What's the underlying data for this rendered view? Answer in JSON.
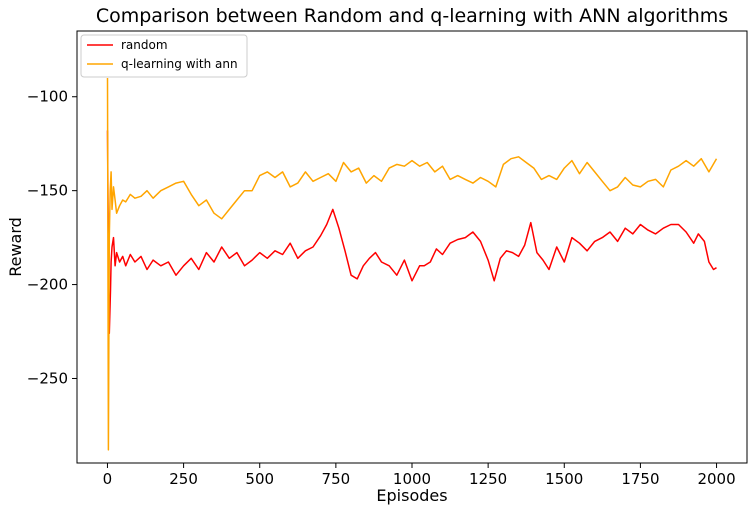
{
  "chart_data": {
    "type": "line",
    "title": "Comparison between Random and q-learning with ANN algorithms",
    "xlabel": "Episodes",
    "ylabel": "Reward",
    "xlim": [
      -100,
      2100
    ],
    "ylim": [
      -295,
      -65
    ],
    "x_ticks": [
      0,
      250,
      500,
      750,
      1000,
      1250,
      1500,
      1750,
      2000
    ],
    "y_ticks": [
      -100,
      -150,
      -200,
      -250
    ],
    "x_tick_labels": [
      "0",
      "250",
      "500",
      "750",
      "1000",
      "1250",
      "1500",
      "1750",
      "2000"
    ],
    "y_tick_labels": [
      "−100",
      "−150",
      "−200",
      "−250"
    ],
    "grid": false,
    "legend_position": "top-left",
    "series": [
      {
        "name": "random",
        "color": "#ff0000",
        "x": [
          0,
          3,
          6,
          10,
          12,
          15,
          20,
          25,
          30,
          40,
          50,
          60,
          75,
          90,
          110,
          130,
          150,
          175,
          200,
          225,
          250,
          275,
          300,
          325,
          350,
          375,
          400,
          425,
          450,
          475,
          500,
          525,
          550,
          575,
          600,
          625,
          650,
          675,
          700,
          720,
          740,
          760,
          780,
          800,
          820,
          840,
          860,
          880,
          900,
          925,
          950,
          975,
          1000,
          1025,
          1040,
          1060,
          1080,
          1100,
          1125,
          1150,
          1175,
          1200,
          1225,
          1250,
          1270,
          1290,
          1310,
          1330,
          1350,
          1370,
          1390,
          1410,
          1430,
          1450,
          1475,
          1500,
          1525,
          1550,
          1575,
          1600,
          1625,
          1650,
          1675,
          1700,
          1725,
          1750,
          1775,
          1800,
          1825,
          1850,
          1875,
          1900,
          1925,
          1940,
          1960,
          1975,
          1990,
          2000
        ],
        "y": [
          -118,
          -185,
          -226,
          -203,
          -188,
          -180,
          -175,
          -190,
          -183,
          -188,
          -185,
          -190,
          -184,
          -188,
          -185,
          -192,
          -187,
          -190,
          -188,
          -195,
          -190,
          -186,
          -192,
          -183,
          -188,
          -180,
          -186,
          -183,
          -190,
          -187,
          -183,
          -186,
          -182,
          -184,
          -178,
          -186,
          -182,
          -180,
          -174,
          -168,
          -160,
          -170,
          -182,
          -195,
          -197,
          -190,
          -186,
          -183,
          -188,
          -190,
          -195,
          -187,
          -198,
          -190,
          -190,
          -188,
          -181,
          -184,
          -178,
          -176,
          -175,
          -172,
          -177,
          -187,
          -198,
          -186,
          -182,
          -183,
          -185,
          -179,
          -167,
          -183,
          -187,
          -192,
          -180,
          -188,
          -175,
          -178,
          -182,
          -177,
          -175,
          -172,
          -177,
          -170,
          -173,
          -168,
          -171,
          -173,
          -170,
          -168,
          -168,
          -172,
          -178,
          -173,
          -177,
          -188,
          -192,
          -191
        ]
      },
      {
        "name": "q-learning with ann",
        "color": "#ffa500",
        "x": [
          0,
          3,
          6,
          9,
          12,
          15,
          20,
          25,
          30,
          40,
          50,
          60,
          75,
          90,
          110,
          130,
          150,
          175,
          200,
          225,
          250,
          275,
          300,
          325,
          350,
          375,
          400,
          425,
          450,
          475,
          500,
          525,
          550,
          575,
          600,
          625,
          650,
          675,
          700,
          725,
          750,
          775,
          800,
          825,
          850,
          875,
          900,
          925,
          950,
          975,
          1000,
          1025,
          1050,
          1075,
          1100,
          1125,
          1150,
          1175,
          1200,
          1225,
          1250,
          1275,
          1300,
          1325,
          1350,
          1375,
          1400,
          1425,
          1450,
          1475,
          1500,
          1525,
          1550,
          1575,
          1600,
          1625,
          1650,
          1675,
          1700,
          1725,
          1750,
          1775,
          1800,
          1825,
          1850,
          1875,
          1900,
          1925,
          1950,
          1975,
          2000
        ],
        "y": [
          -90,
          -288,
          -175,
          -150,
          -140,
          -160,
          -148,
          -155,
          -162,
          -158,
          -155,
          -156,
          -152,
          -154,
          -153,
          -150,
          -154,
          -150,
          -148,
          -146,
          -145,
          -152,
          -158,
          -155,
          -162,
          -165,
          -160,
          -155,
          -150,
          -150,
          -142,
          -140,
          -143,
          -140,
          -148,
          -146,
          -140,
          -145,
          -143,
          -141,
          -145,
          -135,
          -140,
          -138,
          -146,
          -142,
          -145,
          -138,
          -136,
          -137,
          -134,
          -137,
          -135,
          -140,
          -137,
          -144,
          -142,
          -144,
          -146,
          -143,
          -145,
          -148,
          -136,
          -133,
          -132,
          -135,
          -138,
          -144,
          -142,
          -144,
          -138,
          -134,
          -141,
          -135,
          -140,
          -145,
          -150,
          -148,
          -143,
          -147,
          -148,
          -145,
          -144,
          -148,
          -139,
          -137,
          -134,
          -137,
          -133,
          -140,
          -133
        ]
      }
    ]
  }
}
